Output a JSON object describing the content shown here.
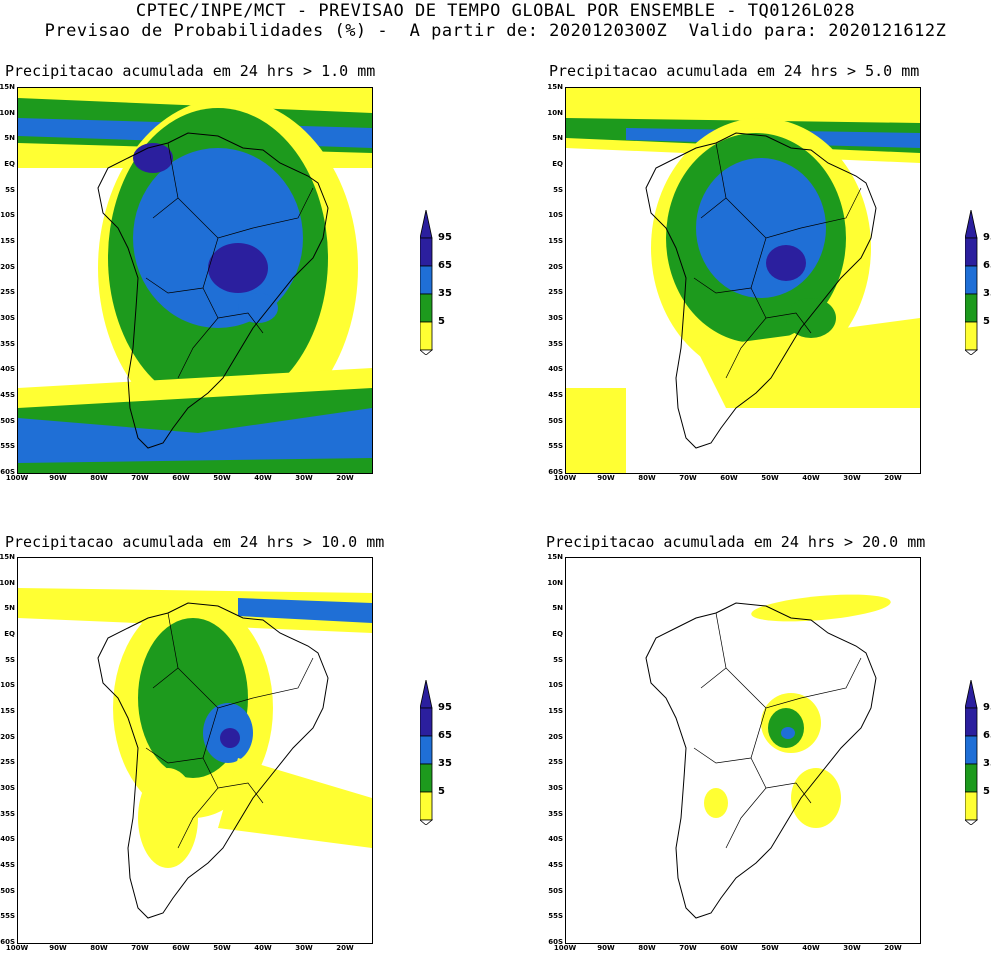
{
  "header": {
    "line1": "CPTEC/INPE/MCT - PREVISAO DE TEMPO GLOBAL POR ENSEMBLE - TQ0126L028",
    "line2": "Previsao de Probabilidades (%) -  A partir de: 2020120300Z  Valido para: 2020121612Z"
  },
  "colors": {
    "c5": "#ffff33",
    "c35": "#1d9a1d",
    "c65": "#1f6fd6",
    "c95": "#2b1f9e"
  },
  "axis": {
    "lat_labels": [
      "15N",
      "10N",
      "5N",
      "EQ",
      "5S",
      "10S",
      "15S",
      "20S",
      "25S",
      "30S",
      "35S",
      "40S",
      "45S",
      "50S",
      "55S",
      "60S"
    ],
    "lon_labels": [
      "100W",
      "90W",
      "80W",
      "70W",
      "60W",
      "50W",
      "40W",
      "30W",
      "20W"
    ]
  },
  "colorbar": {
    "labels": [
      "95",
      "65",
      "35",
      "5"
    ]
  },
  "panels": [
    {
      "title": "Precipitacao acumulada em 24 hrs > 1.0 mm"
    },
    {
      "title": "Precipitacao acumulada em 24 hrs > 5.0 mm"
    },
    {
      "title": "Precipitacao acumulada em 24 hrs > 10.0 mm"
    },
    {
      "title": "Precipitacao acumulada em 24 hrs > 20.0 mm"
    }
  ]
}
